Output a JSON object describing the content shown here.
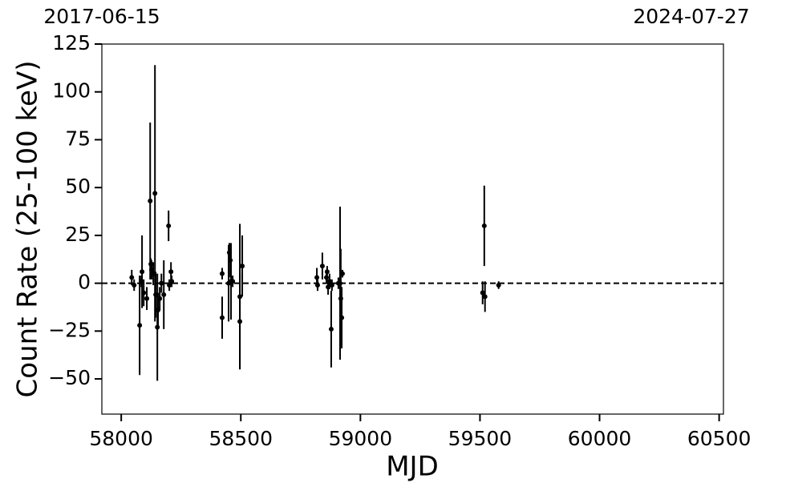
{
  "chart_data": {
    "type": "scatter",
    "x_label": "MJD",
    "y_label": "Count Rate (25-100 keV)",
    "xlim": [
      57919,
      60518
    ],
    "ylim": [
      -68.4,
      125
    ],
    "xticks": [
      58000,
      58500,
      59000,
      59500,
      60000,
      60500
    ],
    "yticks": [
      {
        "value": -50,
        "label": "−50"
      },
      {
        "value": -25,
        "label": "−25"
      },
      0,
      25,
      50,
      75,
      100,
      125
    ],
    "x2ticks": [
      {
        "value": 57919,
        "label": "2017-06-15"
      },
      {
        "value": 60518,
        "label": "2024-07-27"
      }
    ],
    "hline": 0,
    "color": "#000000",
    "x": [
      58044,
      58054,
      58077,
      58084,
      58087,
      58094,
      58107,
      58121,
      58124,
      58127,
      58134,
      58141,
      58144,
      58151,
      58154,
      58161,
      58168,
      58178,
      58198,
      58201,
      58208,
      58211,
      58422,
      58422,
      58449,
      58452,
      58456,
      58459,
      58466,
      58496,
      58496,
      58506,
      58818,
      58821,
      58841,
      58858,
      58861,
      58865,
      58871,
      58878,
      58881,
      58908,
      58915,
      58918,
      58922,
      58925,
      59511,
      59518,
      59521,
      59578
    ],
    "values": [
      3,
      -1,
      -22,
      1,
      6,
      -5,
      -8,
      43,
      10,
      7,
      5,
      47,
      -6,
      -23,
      -14,
      -8,
      0,
      -6,
      30,
      -1,
      6,
      1,
      5,
      -18,
      0,
      16,
      12,
      1,
      1,
      -7,
      -20,
      9,
      3,
      -1,
      9,
      3,
      6,
      -2,
      1,
      -24,
      -1,
      0,
      0,
      -8,
      -18,
      5,
      -5,
      30,
      -7,
      -1
    ],
    "errors": [
      4,
      3,
      26,
      3,
      19,
      7,
      6,
      41,
      3,
      5,
      6,
      67,
      12,
      28,
      9,
      6,
      5,
      18,
      8,
      3,
      5,
      3,
      3,
      11,
      20,
      5,
      9,
      20,
      3,
      38,
      25,
      16,
      5,
      3,
      7,
      3,
      3,
      4,
      4,
      20,
      3,
      3,
      40,
      26,
      16,
      2,
      6,
      21,
      8,
      2
    ]
  }
}
